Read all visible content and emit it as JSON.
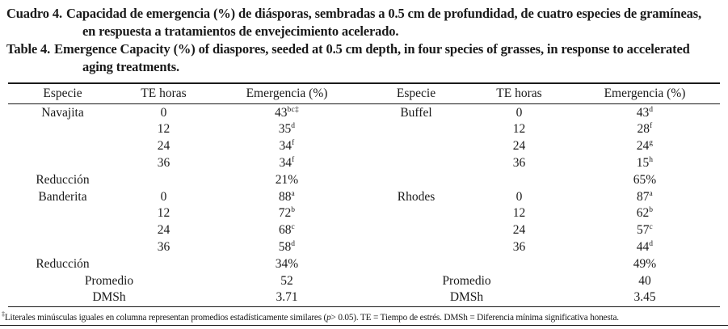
{
  "page": {
    "background_color": "#ffffff",
    "text_color": "#1a1a1a"
  },
  "captions": {
    "spanish": {
      "label": "Cuadro 4.",
      "line1": "Capacidad de emergencia (%) de diásporas, sembradas a 0.5 cm de profundidad, de cuatro especies de gramíneas,",
      "line2": "en respuesta a tratamientos de envejecimiento acelerado."
    },
    "english": {
      "label": "Table 4.",
      "line1": "Emergence Capacity (%) of diaspores, seeded at 0.5 cm depth, in four species of grasses, in response to accelerated",
      "line2": "aging treatments."
    }
  },
  "table": {
    "column_headers": [
      "Especie",
      "TE horas",
      "Emergencia (%)"
    ],
    "rows": [
      {
        "merge": false,
        "left": {
          "especie": "Navajita",
          "te": "0",
          "valor": "43",
          "sup": "bc‡"
        },
        "right": {
          "especie": "Buffel",
          "te": "0",
          "valor": "43",
          "sup": "d"
        }
      },
      {
        "merge": false,
        "left": {
          "especie": "",
          "te": "12",
          "valor": "35",
          "sup": "d"
        },
        "right": {
          "especie": "",
          "te": "12",
          "valor": "28",
          "sup": "f"
        }
      },
      {
        "merge": false,
        "left": {
          "especie": "",
          "te": "24",
          "valor": "34",
          "sup": "f"
        },
        "right": {
          "especie": "",
          "te": "24",
          "valor": "24",
          "sup": "g"
        }
      },
      {
        "merge": false,
        "left": {
          "especie": "",
          "te": "36",
          "valor": "34",
          "sup": "f"
        },
        "right": {
          "especie": "",
          "te": "36",
          "valor": "15",
          "sup": "h"
        }
      },
      {
        "merge": false,
        "left": {
          "especie": "Reducción",
          "te": "",
          "valor": "21%",
          "sup": ""
        },
        "right": {
          "especie": "",
          "te": "",
          "valor": "65%",
          "sup": ""
        }
      },
      {
        "merge": false,
        "left": {
          "especie": "Banderita",
          "te": "0",
          "valor": "88",
          "sup": "a"
        },
        "right": {
          "especie": "Rhodes",
          "te": "0",
          "valor": "87",
          "sup": "a"
        }
      },
      {
        "merge": false,
        "left": {
          "especie": "",
          "te": "12",
          "valor": "72",
          "sup": "b"
        },
        "right": {
          "especie": "",
          "te": "12",
          "valor": "62",
          "sup": "b"
        }
      },
      {
        "merge": false,
        "left": {
          "especie": "",
          "te": "24",
          "valor": "68",
          "sup": "c"
        },
        "right": {
          "especie": "",
          "te": "24",
          "valor": "57",
          "sup": "c"
        }
      },
      {
        "merge": false,
        "left": {
          "especie": "",
          "te": "36",
          "valor": "58",
          "sup": "d"
        },
        "right": {
          "especie": "",
          "te": "36",
          "valor": "44",
          "sup": "d"
        }
      },
      {
        "merge": false,
        "left": {
          "especie": "Reducción",
          "te": "",
          "valor": "34%",
          "sup": ""
        },
        "right": {
          "especie": "",
          "te": "",
          "valor": "49%",
          "sup": ""
        }
      },
      {
        "merge": true,
        "left": {
          "especie": "Promedio",
          "te": "",
          "valor": "52",
          "sup": ""
        },
        "right": {
          "especie": "Promedio",
          "te": "",
          "valor": "40",
          "sup": ""
        }
      },
      {
        "merge": true,
        "left": {
          "especie": "DMSh",
          "te": "",
          "valor": "3.71",
          "sup": ""
        },
        "right": {
          "especie": "DMSh",
          "te": "",
          "valor": "3.45",
          "sup": ""
        }
      }
    ]
  },
  "footnote": {
    "symbol": "‡",
    "before_p": "Literales minúsculas iguales en columna representan promedios estadísticamente similares (",
    "p": "p",
    "after_p": "> 0.05). TE = Tiempo de estrés. DMSh = Diferencia mínima significativa honesta."
  }
}
